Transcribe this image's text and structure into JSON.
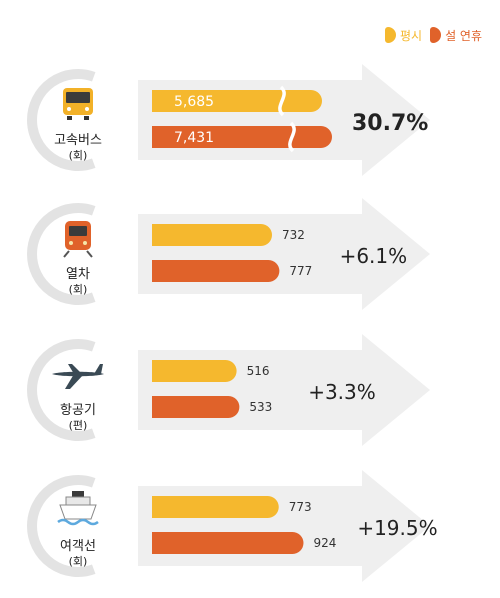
{
  "colors": {
    "normal": "#F5B82E",
    "holiday": "#E0622A",
    "arrow": "#EFEFEF",
    "ring": "#E3E3E3",
    "text": "#222222"
  },
  "legend": [
    {
      "label": "평시",
      "color": "#F5B82E"
    },
    {
      "label": "설 연휴",
      "color": "#E0622A"
    }
  ],
  "chart_data": {
    "type": "bar",
    "orientation": "horizontal",
    "series": [
      {
        "name": "평시",
        "values": [
          5685,
          732,
          516,
          773
        ],
        "labels": [
          "5,685",
          "732",
          "516",
          "773"
        ]
      },
      {
        "name": "설 연휴",
        "values": [
          7431,
          777,
          533,
          924
        ],
        "labels": [
          "7,431",
          "777",
          "533",
          "924"
        ]
      }
    ],
    "categories": [
      {
        "name": "고속버스",
        "unit": "(회)",
        "icon": "bus-icon",
        "change": "30.7%",
        "axis_break": true
      },
      {
        "name": "열차",
        "unit": "(회)",
        "icon": "train-icon",
        "change": "+6.1%",
        "axis_break": false
      },
      {
        "name": "항공기",
        "unit": "(편)",
        "icon": "airplane-icon",
        "change": "+3.3%",
        "axis_break": false
      },
      {
        "name": "여객선",
        "unit": "(회)",
        "icon": "ship-icon",
        "change": "+19.5%",
        "axis_break": false
      }
    ]
  }
}
